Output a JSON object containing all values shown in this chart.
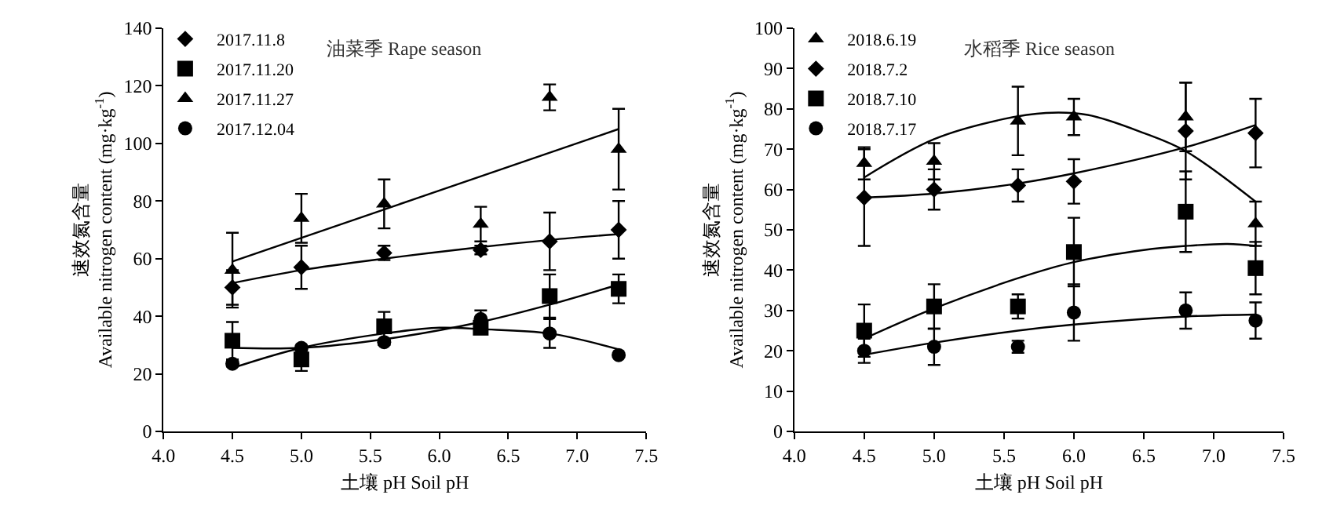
{
  "chart_data": [
    {
      "type": "scatter",
      "title": "油菜季 Rape season",
      "xlabel": "土壤 pH Soil pH",
      "ylabel": "速效氮含量\nAvailable nitrogen content (mg·kg$^{-1}$)",
      "x": [
        4.5,
        5.0,
        5.6,
        6.3,
        6.8,
        7.3
      ],
      "xlim": [
        4.0,
        7.5
      ],
      "xticks": [
        {
          "value": 4.0,
          "label": "4.0"
        },
        4.5,
        {
          "value": 5.0,
          "label": "5.0"
        },
        5.5,
        {
          "value": 6.0,
          "label": "6.0"
        },
        6.5,
        {
          "value": 7.0,
          "label": "7.0"
        },
        7.5
      ],
      "ylim": [
        0,
        140
      ],
      "yticks": [
        0,
        20,
        40,
        60,
        80,
        100,
        120,
        140
      ],
      "legend": "top left",
      "series": [
        {
          "name": "2017.11.8",
          "color": "#000000",
          "marker": "diamond",
          "values": [
            50,
            57,
            62,
            63,
            66,
            70
          ],
          "errors": [
            6,
            7.5,
            2.5,
            1.5,
            10,
            10
          ]
        },
        {
          "name": "2017.11.20",
          "color": "#000000",
          "marker": "square",
          "values": [
            31.5,
            25,
            36.5,
            36,
            47,
            49.5
          ],
          "errors": [
            6.5,
            4,
            5,
            null,
            7.5,
            5
          ]
        },
        {
          "name": "2017.11.27",
          "color": "#000000",
          "marker": "triangle",
          "values": [
            56,
            74,
            79,
            72,
            116,
            98
          ],
          "errors": [
            13,
            8.5,
            8.5,
            6,
            4.5,
            14
          ]
        },
        {
          "name": "2017.12.04",
          "color": "#000000",
          "marker": "circle",
          "values": [
            23.5,
            29,
            31,
            39,
            34,
            26.5
          ],
          "errors": [
            1,
            1,
            1,
            3,
            5,
            null
          ]
        },
        {
          "type": "line",
          "color": "#000000",
          "marker": "none",
          "x": [
            4.5,
            5.0,
            5.6,
            6.3,
            6.8,
            7.3
          ],
          "values": [
            51.5,
            56,
            60,
            64,
            66.5,
            68.5
          ]
        },
        {
          "type": "line",
          "color": "#000000",
          "marker": "none",
          "x": [
            4.5,
            5.0,
            5.6,
            6.3,
            6.8,
            7.3
          ],
          "values": [
            29,
            29,
            32,
            38,
            44,
            51
          ]
        },
        {
          "type": "line",
          "color": "#000000",
          "marker": "none",
          "x": [
            4.5,
            7.3
          ],
          "values": [
            59,
            105
          ]
        },
        {
          "type": "line",
          "color": "#000000",
          "marker": "none",
          "x": [
            4.5,
            5.0,
            5.6,
            6.0,
            6.3,
            6.8,
            7.3
          ],
          "values": [
            22,
            29,
            34,
            36,
            35.5,
            34,
            28.5
          ]
        }
      ]
    },
    {
      "type": "scatter",
      "title": "水稻季 Rice season",
      "xlabel": "土壤 pH Soil pH",
      "ylabel": "速效氮含量\nAvailable nitrogen content (mg·kg$^{-1}$)",
      "x": [
        4.5,
        5.0,
        5.6,
        6.0,
        6.8,
        7.3
      ],
      "xlim": [
        4.0,
        7.5
      ],
      "xticks": [
        {
          "value": 4.0,
          "label": "4.0"
        },
        4.5,
        {
          "value": 5.0,
          "label": "5.0"
        },
        5.5,
        {
          "value": 6.0,
          "label": "6.0"
        },
        6.5,
        {
          "value": 7.0,
          "label": "7.0"
        },
        7.5
      ],
      "ylim": [
        0,
        100
      ],
      "yticks": [
        0,
        10,
        20,
        30,
        40,
        50,
        60,
        70,
        80,
        90,
        100
      ],
      "legend": "top left",
      "series": [
        {
          "name": "2018.6.19",
          "color": "#000000",
          "marker": "triangle",
          "values": [
            66.5,
            67,
            77,
            78,
            78,
            51.5
          ],
          "errors": [
            4,
            4.5,
            8.5,
            4.5,
            8.5,
            5.5
          ]
        },
        {
          "name": "2018.7.2",
          "color": "#000000",
          "marker": "diamond",
          "values": [
            58,
            60,
            61,
            62,
            74.5,
            74
          ],
          "errors": [
            12,
            5,
            4,
            5.5,
            12,
            8.5
          ]
        },
        {
          "name": "2018.7.10",
          "color": "#000000",
          "marker": "square",
          "values": [
            25,
            31,
            31,
            44.5,
            54.5,
            40.5
          ],
          "errors": [
            6.5,
            5.5,
            3,
            8.5,
            10,
            6.5
          ]
        },
        {
          "name": "2018.7.17",
          "color": "#000000",
          "marker": "circle",
          "values": [
            20,
            21,
            21,
            29.5,
            30,
            27.5
          ],
          "errors": [
            3,
            4.5,
            1.5,
            7,
            4.5,
            4.5
          ]
        },
        {
          "type": "line",
          "color": "#000000",
          "marker": "none",
          "x": [
            4.5,
            5.0,
            5.5,
            5.8,
            6.1,
            6.5,
            6.8,
            7.3
          ],
          "values": [
            63,
            72.5,
            77.5,
            79,
            78.5,
            74,
            69.5,
            57
          ]
        },
        {
          "type": "line",
          "color": "#000000",
          "marker": "none",
          "x": [
            4.5,
            5.0,
            5.6,
            6.0,
            6.8,
            7.3
          ],
          "values": [
            58,
            59,
            61.5,
            64,
            70.5,
            76
          ]
        },
        {
          "type": "line",
          "color": "#000000",
          "marker": "none",
          "x": [
            4.5,
            5.0,
            5.6,
            6.0,
            6.5,
            6.8,
            7.1,
            7.3
          ],
          "values": [
            23,
            30.5,
            38,
            42,
            45,
            46,
            46.5,
            46
          ]
        },
        {
          "type": "line",
          "color": "#000000",
          "marker": "none",
          "x": [
            4.5,
            5.0,
            5.6,
            6.0,
            6.8,
            7.3
          ],
          "values": [
            19,
            22,
            25,
            26.5,
            28.5,
            29
          ]
        }
      ]
    }
  ]
}
